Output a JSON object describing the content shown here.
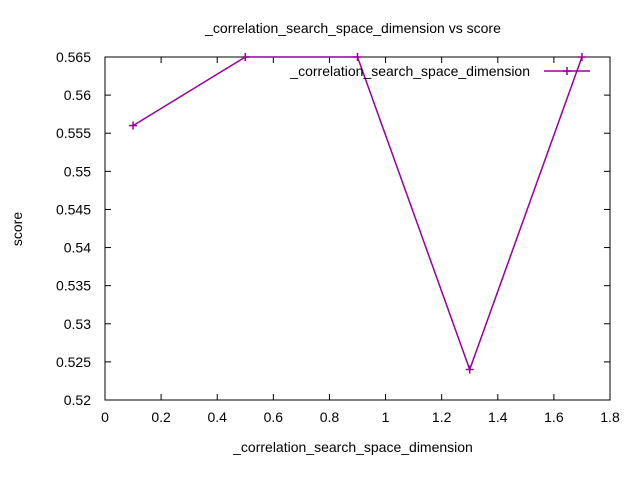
{
  "chart_data": {
    "type": "line",
    "title": "_correlation_search_space_dimension vs score",
    "xlabel": "_correlation_search_space_dimension",
    "ylabel": "score",
    "xlim": [
      0,
      1.8
    ],
    "ylim": [
      0.52,
      0.565
    ],
    "x_ticks": [
      "0",
      "0.2",
      "0.4",
      "0.6",
      "0.8",
      "1",
      "1.2",
      "1.4",
      "1.6",
      "1.8"
    ],
    "y_ticks": [
      "0.52",
      "0.525",
      "0.53",
      "0.535",
      "0.54",
      "0.545",
      "0.55",
      "0.555",
      "0.56",
      "0.565"
    ],
    "grid": false,
    "legend_position": "top-right",
    "series": [
      {
        "name": "_correlation_search_space_dimension",
        "color": "#990099",
        "marker": "plus",
        "x": [
          0.1,
          0.5,
          0.9,
          1.3,
          1.7
        ],
        "y": [
          0.556,
          0.565,
          0.565,
          0.524,
          0.565
        ]
      }
    ]
  }
}
